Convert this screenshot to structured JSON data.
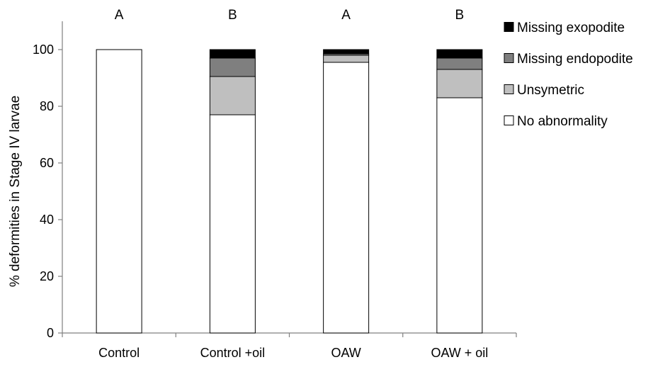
{
  "chart_data": {
    "type": "bar",
    "stacked": true,
    "ylabel": "% deformities in Stage IV larvae",
    "xlabel": "",
    "ylim": [
      0,
      110
    ],
    "yticks": [
      0,
      20,
      40,
      60,
      80,
      100
    ],
    "grid": false,
    "legend_position": "right",
    "categories": [
      "Control",
      "Control +oil",
      "OAW",
      "OAW + oil"
    ],
    "group_letters": [
      "A",
      "B",
      "A",
      "B"
    ],
    "series": [
      {
        "name": "No abnormality",
        "color": "#ffffff",
        "values": [
          100,
          77,
          95.5,
          83
        ]
      },
      {
        "name": "Unsymetric",
        "color": "#bfbfbf",
        "values": [
          0,
          13.5,
          2.5,
          10
        ]
      },
      {
        "name": "Missing endopodite",
        "color": "#7f7f7f",
        "values": [
          0,
          6.5,
          0.5,
          4
        ]
      },
      {
        "name": "Missing exopodite",
        "color": "#000000",
        "values": [
          0,
          3,
          1.5,
          3
        ]
      }
    ],
    "legend_order": [
      "Missing exopodite",
      "Missing endopodite",
      "Unsymetric",
      "No abnormality"
    ]
  }
}
